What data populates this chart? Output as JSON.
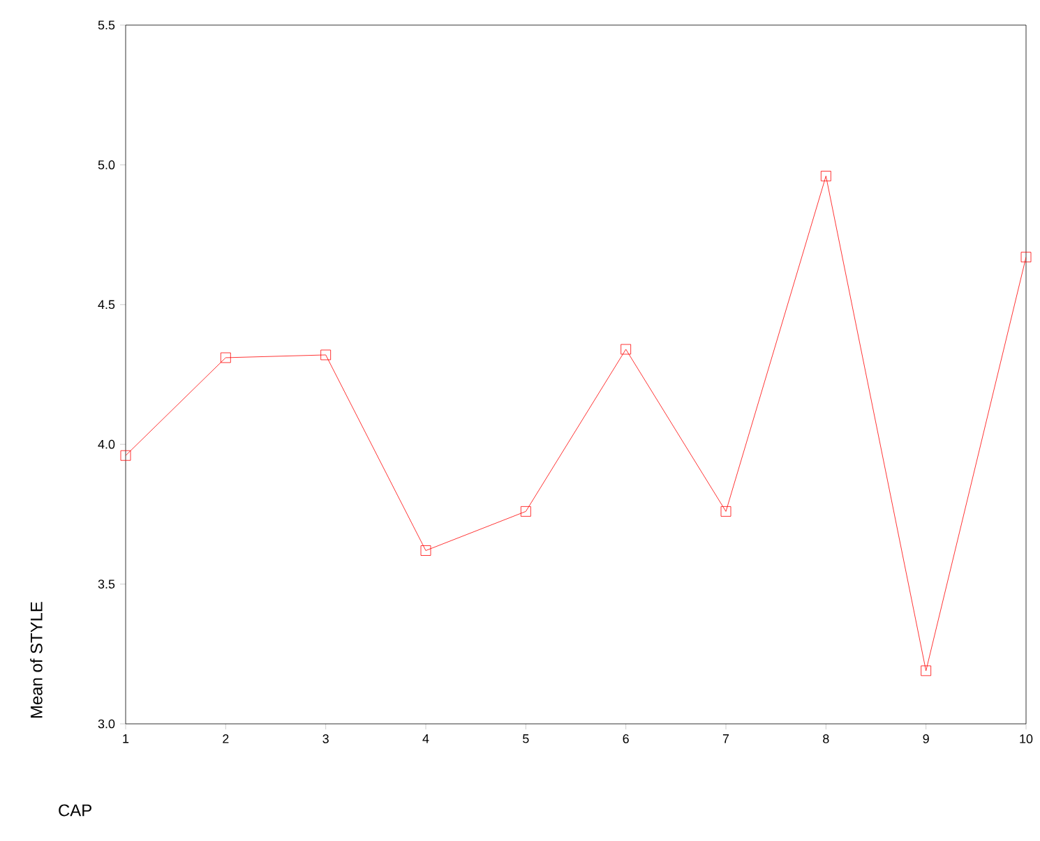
{
  "chart_data": {
    "type": "line",
    "xlabel": "CAP",
    "ylabel": "Mean of STYLE",
    "x": [
      1,
      2,
      3,
      4,
      5,
      6,
      7,
      8,
      9,
      10
    ],
    "values": [
      3.96,
      4.31,
      4.32,
      3.62,
      3.76,
      4.34,
      3.76,
      4.96,
      3.19,
      4.67
    ],
    "color": "#ff0000",
    "marker": "square",
    "line_style": "solid",
    "xlim": [
      1,
      10
    ],
    "xticks": [
      1,
      2,
      3,
      4,
      5,
      6,
      7,
      8,
      9,
      10
    ],
    "ylim": [
      3.0,
      5.5
    ],
    "yticks": [
      {
        "value": 3.0,
        "label": "3.0"
      },
      {
        "value": 3.5,
        "label": "3.5"
      },
      {
        "value": 4.0,
        "label": "4.0"
      },
      {
        "value": 4.5,
        "label": "4.5"
      },
      {
        "value": 5.0,
        "label": "5.0"
      },
      {
        "value": 5.5,
        "label": "5.5"
      }
    ]
  }
}
